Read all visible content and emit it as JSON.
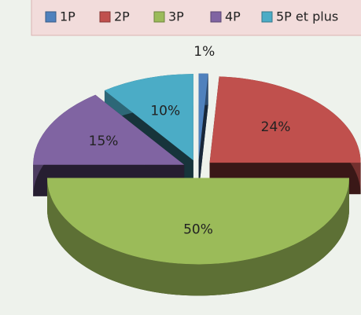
{
  "chart_data": {
    "type": "pie3d",
    "categories": [
      "1P",
      "2P",
      "3P",
      "4P",
      "5P et plus"
    ],
    "values": [
      1,
      24,
      50,
      15,
      10
    ],
    "value_labels": [
      "1%",
      "24%",
      "50%",
      "15%",
      "10%"
    ],
    "colors": [
      "#4f81bd",
      "#c0504d",
      "#9bbb59",
      "#8064a2",
      "#4bacc6"
    ],
    "legend": "top"
  }
}
